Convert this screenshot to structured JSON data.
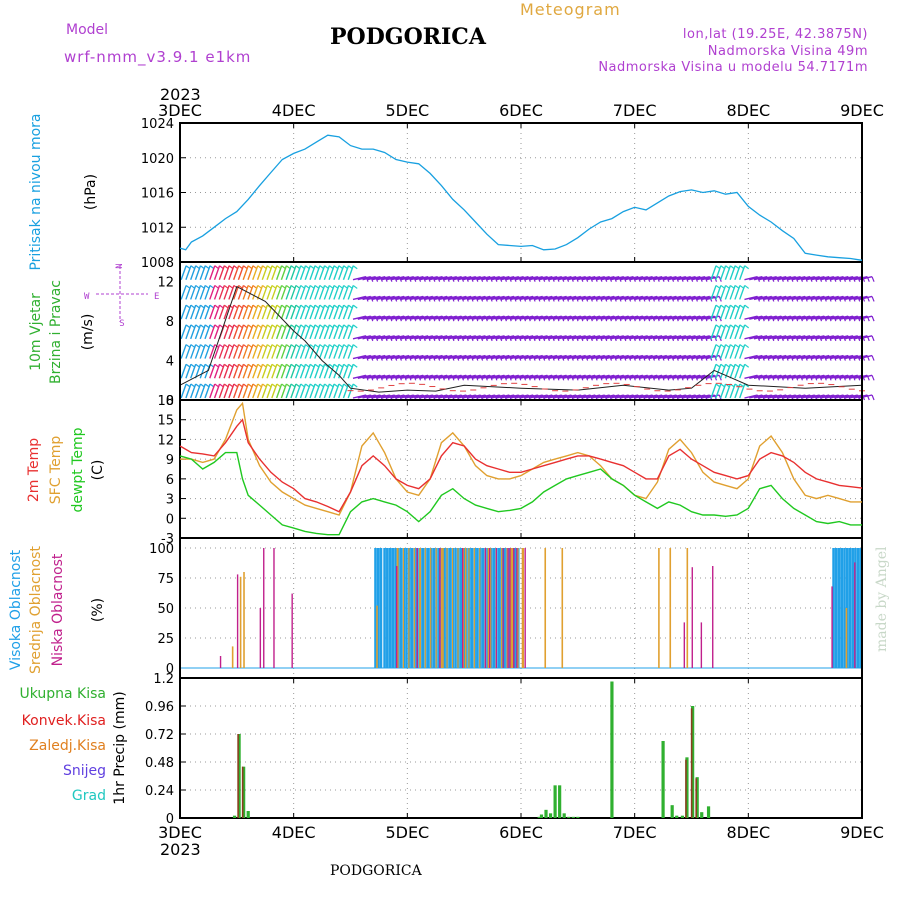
{
  "header": {
    "model_label": "Model",
    "model_name": "wrf-nmm_v3.9.1 e1km",
    "station": "PODGORICA",
    "meteogram_label": "Meteogram",
    "coords": "lon,lat (19.25E, 42.3875N)",
    "elevation": "Nadmorska Visina 49m",
    "model_elevation": "Nadmorska Visina u modelu 54.7171m",
    "footer_station": "PODGORICA",
    "credit": "made by Angel"
  },
  "colors": {
    "purple": "#b040d0",
    "gold": "#e0a840",
    "pressure": "#18a0e0",
    "temp": "#e83030",
    "sfc": "#e0a030",
    "dew": "#20c820",
    "high_cloud": "#20a0e8",
    "mid_cloud": "#e0a030",
    "low_cloud": "#c0208c",
    "rain_total": "#30b030",
    "rain_conv": "#e02020",
    "rain_strat": "#e08020",
    "snow": "#6040e0",
    "hail": "#20c8c0",
    "wind_purple": "#8020d0",
    "wind_blue": "#20a0e0",
    "wind_cyan": "#20d0c8"
  },
  "chart_data": [
    {
      "id": "pressure",
      "type": "line",
      "title": "",
      "ylabel_lines": [
        "Pritisak na nivou mora",
        "(hPa)"
      ],
      "ylim": [
        1008,
        1024
      ],
      "yticks": [
        "1008",
        "1012",
        "1016",
        "1020",
        "1024"
      ],
      "x_unit": "day offset from 3DEC 2023 00UTC",
      "series": [
        {
          "name": "Pritisak na nivou mora",
          "x": [
            0.0,
            0.05,
            0.1,
            0.2,
            0.3,
            0.4,
            0.5,
            0.6,
            0.7,
            0.8,
            0.9,
            1.0,
            1.1,
            1.2,
            1.3,
            1.4,
            1.5,
            1.6,
            1.7,
            1.8,
            1.9,
            2.0,
            2.1,
            2.2,
            2.3,
            2.4,
            2.5,
            2.6,
            2.7,
            2.8,
            2.9,
            3.0,
            3.1,
            3.2,
            3.3,
            3.4,
            3.5,
            3.6,
            3.7,
            3.8,
            3.9,
            4.0,
            4.1,
            4.2,
            4.3,
            4.4,
            4.5,
            4.6,
            4.7,
            4.8,
            4.9,
            5.0,
            5.1,
            5.2,
            5.3,
            5.4,
            5.5,
            5.6,
            5.7,
            5.8,
            5.9,
            6.0
          ],
          "values": [
            1009.6,
            1009.4,
            1010.3,
            1011.0,
            1012.0,
            1013.0,
            1013.8,
            1015.2,
            1016.8,
            1018.3,
            1019.8,
            1020.5,
            1021.0,
            1021.8,
            1022.6,
            1022.4,
            1021.4,
            1021.0,
            1021.0,
            1020.6,
            1019.8,
            1019.5,
            1019.3,
            1018.2,
            1016.8,
            1015.2,
            1014.0,
            1012.6,
            1011.2,
            1010.0,
            1009.9,
            1009.8,
            1009.9,
            1009.4,
            1009.5,
            1010.0,
            1010.8,
            1011.8,
            1012.6,
            1013.0,
            1013.8,
            1014.3,
            1014.0,
            1014.8,
            1015.6,
            1016.1,
            1016.3,
            1016.0,
            1016.2,
            1015.8,
            1016.0,
            1014.4,
            1013.4,
            1012.6,
            1011.6,
            1010.7,
            1009.0,
            1008.8,
            1008.6,
            1008.5,
            1008.4,
            1008.2
          ]
        }
      ]
    },
    {
      "id": "wind",
      "type": "wind-barbs",
      "title": "",
      "ylabel_lines": [
        "10m Vjetar",
        "Brzina i Pravac",
        "(m/s)"
      ],
      "compass_labels": [
        "N",
        "E",
        "S",
        "W"
      ],
      "ylim": [
        0,
        14
      ],
      "yticks": [
        "0",
        "4",
        "8",
        "12"
      ],
      "barb_speed_rows_ms": [
        0,
        2,
        4,
        6,
        8,
        10,
        12,
        14
      ],
      "regimes": [
        {
          "from_day": 0.0,
          "to_day": 0.25,
          "color": "wind_blue",
          "label": ""
        },
        {
          "from_day": 0.25,
          "to_day": 1.0,
          "color": "gradient",
          "label": ""
        },
        {
          "from_day": 1.0,
          "to_day": 1.5,
          "color": "wind_cyan",
          "label": ""
        },
        {
          "from_day": 1.5,
          "to_day": 4.65,
          "color": "wind_purple",
          "label": ""
        },
        {
          "from_day": 4.65,
          "to_day": 4.95,
          "color": "wind_cyan",
          "label": ""
        },
        {
          "from_day": 4.95,
          "to_day": 6.0,
          "color": "wind_purple",
          "label": ""
        }
      ],
      "series": [
        {
          "name": "",
          "x": [
            0.0,
            0.25,
            0.5,
            0.75,
            1.0,
            1.1,
            1.25,
            1.4,
            1.5,
            1.75,
            2.0,
            2.25,
            2.5,
            3.0,
            3.5,
            3.9,
            4.3,
            4.5,
            4.7,
            5.0,
            5.5,
            6.0
          ],
          "values": [
            1.5,
            3.0,
            11.5,
            10.0,
            7.0,
            6.0,
            4.0,
            2.5,
            1.2,
            0.8,
            1.0,
            0.9,
            1.5,
            1.2,
            1.0,
            1.5,
            1.0,
            1.2,
            3.0,
            1.5,
            1.2,
            1.5
          ]
        }
      ]
    },
    {
      "id": "temperature",
      "type": "line",
      "title": "",
      "ylabel_lines": [
        "2m Temp",
        "SFC Temp",
        "dewpt Temp",
        "(C)"
      ],
      "ylim": [
        -3,
        18
      ],
      "yticks": [
        "-3",
        "0",
        "3",
        "6",
        "9",
        "12",
        "15",
        "18"
      ],
      "series": [
        {
          "name": "2m Temp",
          "x": [
            0.0,
            0.1,
            0.2,
            0.3,
            0.4,
            0.5,
            0.55,
            0.6,
            0.7,
            0.8,
            0.9,
            1.0,
            1.1,
            1.2,
            1.3,
            1.4,
            1.5,
            1.6,
            1.7,
            1.8,
            1.9,
            2.0,
            2.1,
            2.2,
            2.3,
            2.4,
            2.5,
            2.6,
            2.7,
            2.8,
            2.9,
            3.0,
            3.1,
            3.2,
            3.3,
            3.4,
            3.5,
            3.6,
            3.7,
            3.8,
            3.9,
            4.0,
            4.1,
            4.2,
            4.3,
            4.4,
            4.5,
            4.6,
            4.7,
            4.8,
            4.9,
            5.0,
            5.1,
            5.2,
            5.3,
            5.4,
            5.5,
            5.6,
            5.7,
            5.8,
            5.9,
            6.0
          ],
          "values": [
            11.0,
            10.0,
            9.8,
            9.5,
            11.5,
            14.0,
            15.0,
            11.5,
            9.0,
            7.0,
            5.5,
            4.5,
            3.0,
            2.5,
            1.8,
            1.0,
            4.0,
            8.0,
            9.5,
            8.0,
            6.0,
            5.0,
            4.5,
            6.0,
            9.5,
            11.5,
            11.0,
            9.0,
            8.0,
            7.5,
            7.0,
            7.0,
            7.5,
            8.0,
            8.5,
            9.0,
            9.5,
            9.5,
            9.0,
            8.5,
            8.0,
            7.0,
            6.0,
            6.0,
            9.5,
            10.5,
            9.0,
            8.0,
            7.0,
            6.5,
            6.0,
            6.5,
            9.0,
            10.0,
            9.5,
            8.5,
            7.0,
            6.0,
            5.5,
            5.0,
            4.8,
            4.6
          ]
        },
        {
          "name": "SFC Temp",
          "x": [
            0.0,
            0.1,
            0.2,
            0.3,
            0.4,
            0.5,
            0.55,
            0.6,
            0.7,
            0.8,
            0.9,
            1.0,
            1.1,
            1.2,
            1.3,
            1.4,
            1.5,
            1.6,
            1.7,
            1.8,
            1.9,
            2.0,
            2.1,
            2.2,
            2.3,
            2.4,
            2.5,
            2.6,
            2.7,
            2.8,
            2.9,
            3.0,
            3.1,
            3.2,
            3.3,
            3.4,
            3.5,
            3.6,
            3.7,
            3.8,
            3.9,
            4.0,
            4.1,
            4.2,
            4.3,
            4.4,
            4.5,
            4.6,
            4.7,
            4.8,
            4.9,
            5.0,
            5.1,
            5.2,
            5.3,
            5.4,
            5.5,
            5.6,
            5.7,
            5.8,
            5.9,
            6.0
          ],
          "values": [
            9.0,
            9.0,
            8.5,
            9.0,
            12.0,
            16.5,
            17.5,
            12.0,
            8.0,
            5.5,
            4.0,
            3.0,
            2.0,
            1.5,
            1.0,
            0.5,
            4.0,
            11.0,
            13.0,
            10.0,
            6.0,
            4.0,
            3.5,
            6.0,
            11.5,
            13.0,
            11.0,
            8.0,
            6.5,
            6.0,
            6.0,
            6.5,
            7.5,
            8.5,
            9.0,
            9.5,
            10.0,
            9.5,
            8.0,
            6.0,
            5.0,
            3.5,
            3.0,
            5.5,
            10.5,
            12.0,
            10.0,
            7.0,
            5.5,
            5.0,
            4.5,
            6.0,
            11.0,
            12.5,
            10.0,
            6.0,
            3.5,
            3.0,
            3.5,
            3.0,
            2.5,
            2.5
          ]
        },
        {
          "name": "dewpt Temp",
          "x": [
            0.0,
            0.1,
            0.2,
            0.3,
            0.4,
            0.5,
            0.55,
            0.6,
            0.7,
            0.8,
            0.9,
            1.0,
            1.1,
            1.2,
            1.3,
            1.4,
            1.5,
            1.6,
            1.7,
            1.8,
            1.9,
            2.0,
            2.1,
            2.2,
            2.3,
            2.4,
            2.5,
            2.6,
            2.7,
            2.8,
            2.9,
            3.0,
            3.1,
            3.2,
            3.3,
            3.4,
            3.5,
            3.6,
            3.7,
            3.8,
            3.9,
            4.0,
            4.1,
            4.2,
            4.3,
            4.4,
            4.5,
            4.6,
            4.7,
            4.8,
            4.9,
            5.0,
            5.1,
            5.2,
            5.3,
            5.4,
            5.5,
            5.6,
            5.7,
            5.8,
            5.9,
            6.0
          ],
          "values": [
            9.5,
            9.0,
            7.5,
            8.5,
            10.0,
            10.0,
            6.0,
            3.5,
            2.0,
            0.5,
            -1.0,
            -1.5,
            -2.0,
            -2.3,
            -2.5,
            -2.5,
            1.0,
            2.5,
            3.0,
            2.5,
            2.0,
            1.0,
            -0.5,
            1.0,
            3.5,
            4.5,
            3.0,
            2.0,
            1.5,
            1.0,
            1.2,
            1.5,
            2.5,
            4.0,
            5.0,
            6.0,
            6.5,
            7.0,
            7.5,
            6.0,
            5.0,
            3.5,
            2.5,
            1.5,
            2.5,
            2.0,
            1.0,
            0.5,
            0.5,
            0.3,
            0.5,
            1.5,
            4.5,
            5.0,
            3.0,
            1.5,
            0.5,
            -0.5,
            -0.8,
            -0.5,
            -1.0,
            -1.0
          ]
        }
      ]
    },
    {
      "id": "clouds",
      "type": "bar",
      "title": "",
      "ylabel_lines": [
        "Visoka Oblacnost",
        "Srednja Oblacnost",
        "Niska Oblacnost",
        "(%)"
      ],
      "ylim": [
        0,
        100
      ],
      "yticks": [
        "0",
        "25",
        "50",
        "75",
        "100"
      ],
      "series": [
        {
          "name": "Visoka Oblacnost",
          "segments": [
            {
              "from_day": 1.72,
              "to_day": 1.78,
              "value": 100
            },
            {
              "from_day": 1.8,
              "to_day": 3.0,
              "value": 100
            },
            {
              "from_day": 5.75,
              "to_day": 6.0,
              "value": 100
            }
          ],
          "x": [
            1.74,
            1.76,
            1.85,
            2.0,
            2.5,
            3.0,
            5.8,
            5.9
          ],
          "values": [
            100,
            60,
            100,
            100,
            100,
            100,
            100,
            100
          ]
        },
        {
          "name": "Srednja Oblacnost",
          "x": [
            0.45,
            0.52,
            0.55,
            1.72,
            1.9,
            2.1,
            2.3,
            2.5,
            2.7,
            2.9,
            3.0,
            3.2,
            3.35,
            4.2,
            4.3,
            4.45,
            5.85
          ],
          "values": [
            18,
            76,
            80,
            52,
            100,
            100,
            100,
            100,
            100,
            100,
            100,
            100,
            100,
            100,
            100,
            100,
            50
          ]
        },
        {
          "name": "Niska Oblacnost",
          "x": [
            0.37,
            0.52,
            0.72,
            0.75,
            0.84,
            1.0,
            1.92,
            2.1,
            2.3,
            2.5,
            2.7,
            2.9,
            2.95,
            3.05,
            4.45,
            4.52,
            4.6,
            4.7,
            5.75,
            5.95
          ],
          "values": [
            10,
            78,
            50,
            100,
            100,
            62,
            85,
            100,
            100,
            100,
            100,
            100,
            100,
            100,
            38,
            84,
            38,
            85,
            68,
            88
          ]
        }
      ]
    },
    {
      "id": "precip",
      "type": "bar",
      "title": "",
      "ylabel_lines": [
        "1hr Precip (mm)"
      ],
      "legend": [
        "Ukupna Kisa",
        "Konvek.Kisa",
        "Zaledj.Kisa",
        "Snijeg",
        "Grad"
      ],
      "ylim": [
        0,
        1.2
      ],
      "yticks": [
        "0",
        "0.24",
        "0.48",
        "0.72",
        "0.96",
        "1.2"
      ],
      "series": [
        {
          "name": "Ukupna Kisa",
          "x": [
            0.48,
            0.52,
            0.56,
            0.6,
            3.16,
            3.18,
            3.22,
            3.26,
            3.3,
            3.34,
            3.38,
            3.42,
            3.46,
            3.5,
            3.8,
            4.25,
            4.33,
            4.37,
            4.42,
            4.46,
            4.51,
            4.55,
            4.59,
            4.65
          ],
          "values": [
            0.02,
            0.72,
            0.44,
            0.06,
            0.01,
            0.03,
            0.07,
            0.04,
            0.28,
            0.28,
            0.04,
            0.01,
            0.01,
            0.01,
            1.17,
            0.66,
            0.11,
            0.02,
            0.02,
            0.52,
            0.96,
            0.35,
            0.05,
            0.1
          ]
        },
        {
          "name": "Konvek.Kisa",
          "x": [
            0.52,
            0.56,
            3.8,
            4.25,
            4.46,
            4.51,
            4.55
          ],
          "values": [
            0.72,
            0.44,
            0.0,
            0.0,
            0.5,
            0.94,
            0.34
          ]
        },
        {
          "name": "Zaledj.Kisa",
          "x": [],
          "values": []
        },
        {
          "name": "Snijeg",
          "x": [],
          "values": []
        },
        {
          "name": "Grad",
          "x": [],
          "values": []
        }
      ]
    }
  ],
  "xaxis": {
    "top_year": "2023",
    "bottom_year": "2023",
    "day_labels": [
      "3DEC",
      "4DEC",
      "5DEC",
      "6DEC",
      "7DEC",
      "8DEC",
      "9DEC"
    ]
  }
}
